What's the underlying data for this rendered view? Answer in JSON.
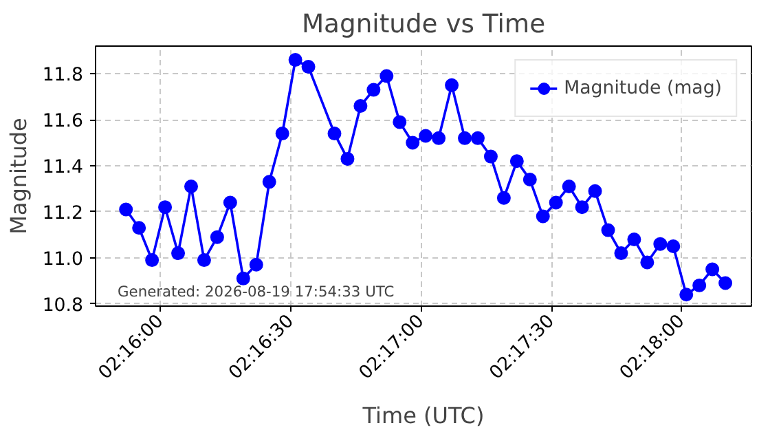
{
  "chart_data": {
    "type": "line",
    "title": "Magnitude vs Time",
    "xlabel": "Time (UTC)",
    "ylabel": "Magnitude",
    "x": [
      2.264444,
      2.265278,
      2.266111,
      2.266944,
      2.267778,
      2.268611,
      2.269444,
      2.270278,
      2.271111,
      2.271944,
      2.272778,
      2.273611,
      2.274444,
      2.275278,
      2.276111,
      2.277778,
      2.278611,
      2.279444,
      2.280278,
      2.281111,
      2.281944,
      2.282778,
      2.283611,
      2.284444,
      2.285278,
      2.286111,
      2.286944,
      2.287778,
      2.288611,
      2.289444,
      2.290278,
      2.291111,
      2.291944,
      2.292778,
      2.293611,
      2.294444,
      2.295278,
      2.296111,
      2.296944,
      2.297778,
      2.298611,
      2.299444,
      2.300278,
      2.301111,
      2.301944,
      2.302778
    ],
    "series": [
      {
        "name": "Magnitude (mag)",
        "color": "#0000ff",
        "values": [
          11.21,
          11.13,
          10.99,
          11.22,
          11.02,
          11.31,
          10.99,
          11.09,
          11.24,
          10.91,
          10.97,
          11.33,
          11.54,
          11.86,
          11.83,
          11.54,
          11.43,
          11.66,
          11.73,
          11.79,
          11.59,
          11.5,
          11.53,
          11.52,
          11.75,
          11.52,
          11.52,
          11.44,
          11.26,
          11.42,
          11.34,
          11.18,
          11.24,
          11.31,
          11.22,
          11.29,
          11.12,
          11.02,
          11.08,
          10.98,
          11.06,
          11.05,
          10.84,
          10.88,
          10.95,
          10.89
        ]
      }
    ],
    "xlim": [
      2.2625,
      2.304444
    ],
    "ylim": [
      10.79,
      11.92
    ],
    "xticks": [
      {
        "value": 2.266667,
        "label": "02:16:00"
      },
      {
        "value": 2.275,
        "label": "02:16:30"
      },
      {
        "value": 2.283333,
        "label": "02:17:00"
      },
      {
        "value": 2.291667,
        "label": "02:17:30"
      },
      {
        "value": 2.3,
        "label": "02:18:00"
      }
    ],
    "yticks": [
      {
        "value": 10.8,
        "label": "10.8"
      },
      {
        "value": 11.0,
        "label": "11.0"
      },
      {
        "value": 11.2,
        "label": "11.2"
      },
      {
        "value": 11.4,
        "label": "11.4"
      },
      {
        "value": 11.6,
        "label": "11.6"
      },
      {
        "value": 11.8,
        "label": "11.8"
      }
    ],
    "grid": true,
    "legend": "top right",
    "marker": "circle",
    "line_style": "solid",
    "annotations": [
      "Generated: 2026-08-19 17:54:33 UTC"
    ]
  }
}
